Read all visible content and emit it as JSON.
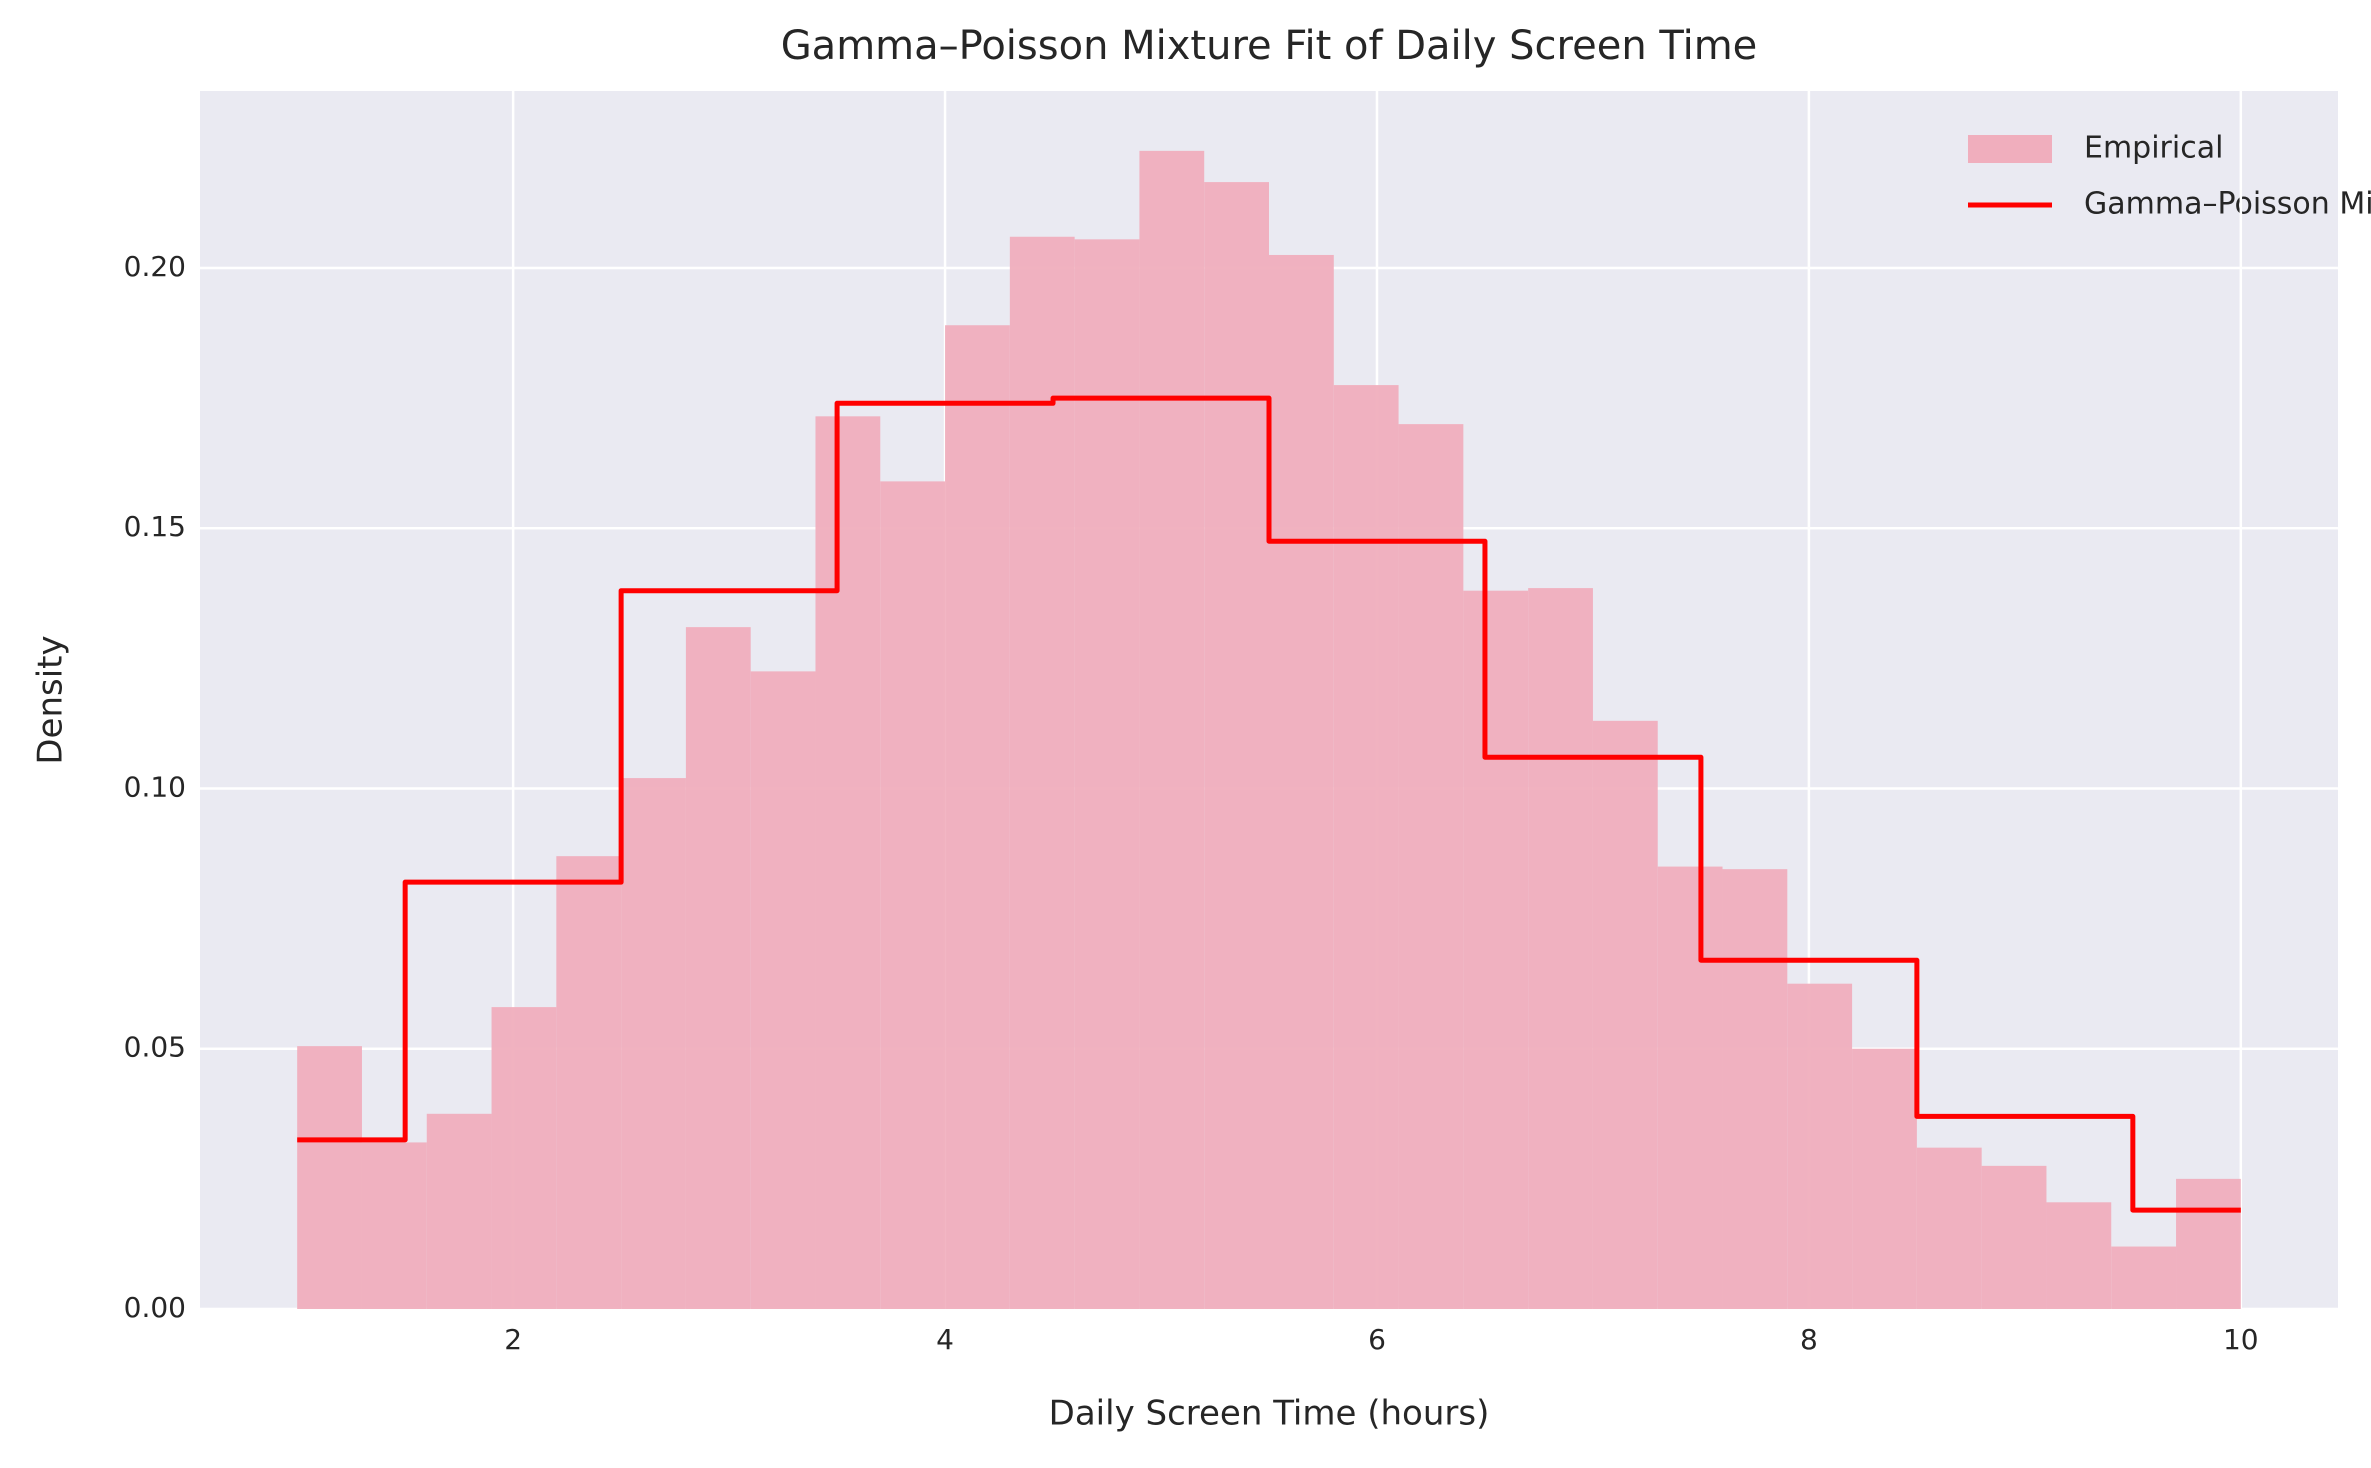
{
  "chart_data": {
    "type": "histogram",
    "title": "Gamma–Poisson Mixture Fit of Daily Screen Time",
    "xlabel": "Daily Screen Time (hours)",
    "ylabel": "Density",
    "name": "Empirical",
    "color": "#f0aebd",
    "bins": [
      1.0,
      1.3,
      1.6,
      1.9,
      2.2,
      2.5,
      2.8,
      3.1,
      3.4,
      3.7,
      4.0,
      4.3,
      4.6,
      4.9,
      5.2,
      5.5,
      5.8,
      6.1,
      6.4,
      6.7,
      7.0,
      7.3,
      7.6,
      7.9,
      8.2,
      8.5,
      8.8,
      9.1,
      9.4,
      9.7,
      10.0
    ],
    "values": [
      0.0505,
      0.032,
      0.0375,
      0.058,
      0.087,
      0.102,
      0.131,
      0.1225,
      0.1715,
      0.159,
      0.189,
      0.206,
      0.2055,
      0.2225,
      0.2165,
      0.2025,
      0.1775,
      0.17,
      0.138,
      0.1385,
      0.113,
      0.085,
      0.0845,
      0.0625,
      0.05,
      0.031,
      0.0275,
      0.0205,
      0.012,
      0.025
    ],
    "lines": [
      {
        "type": "line",
        "name": "Gamma–Poisson Mixture",
        "color": "#ff0000",
        "x": [
          1.0,
          1.5,
          1.5,
          2.5,
          2.5,
          3.5,
          3.5,
          4.5,
          4.5,
          5.5,
          5.5,
          6.5,
          6.5,
          7.5,
          7.5,
          8.5,
          8.5,
          9.5,
          9.5,
          10.0
        ],
        "values": [
          0.0325,
          0.0325,
          0.082,
          0.082,
          0.138,
          0.138,
          0.174,
          0.174,
          0.175,
          0.175,
          0.1475,
          0.1475,
          0.106,
          0.106,
          0.067,
          0.067,
          0.037,
          0.037,
          0.019,
          0.019
        ]
      }
    ],
    "xlim": [
      0.55,
      10.45
    ],
    "ylim": [
      0,
      0.234
    ],
    "xticks": [
      2,
      4,
      6,
      8,
      10
    ],
    "yticks": [
      {
        "value": 0,
        "label": "0.00"
      },
      {
        "value": 0.05,
        "label": "0.05"
      },
      {
        "value": 0.1,
        "label": "0.10"
      },
      {
        "value": 0.15,
        "label": "0.15"
      },
      {
        "value": 0.2,
        "label": "0.20"
      }
    ],
    "grid": true,
    "legend": "upper right"
  }
}
